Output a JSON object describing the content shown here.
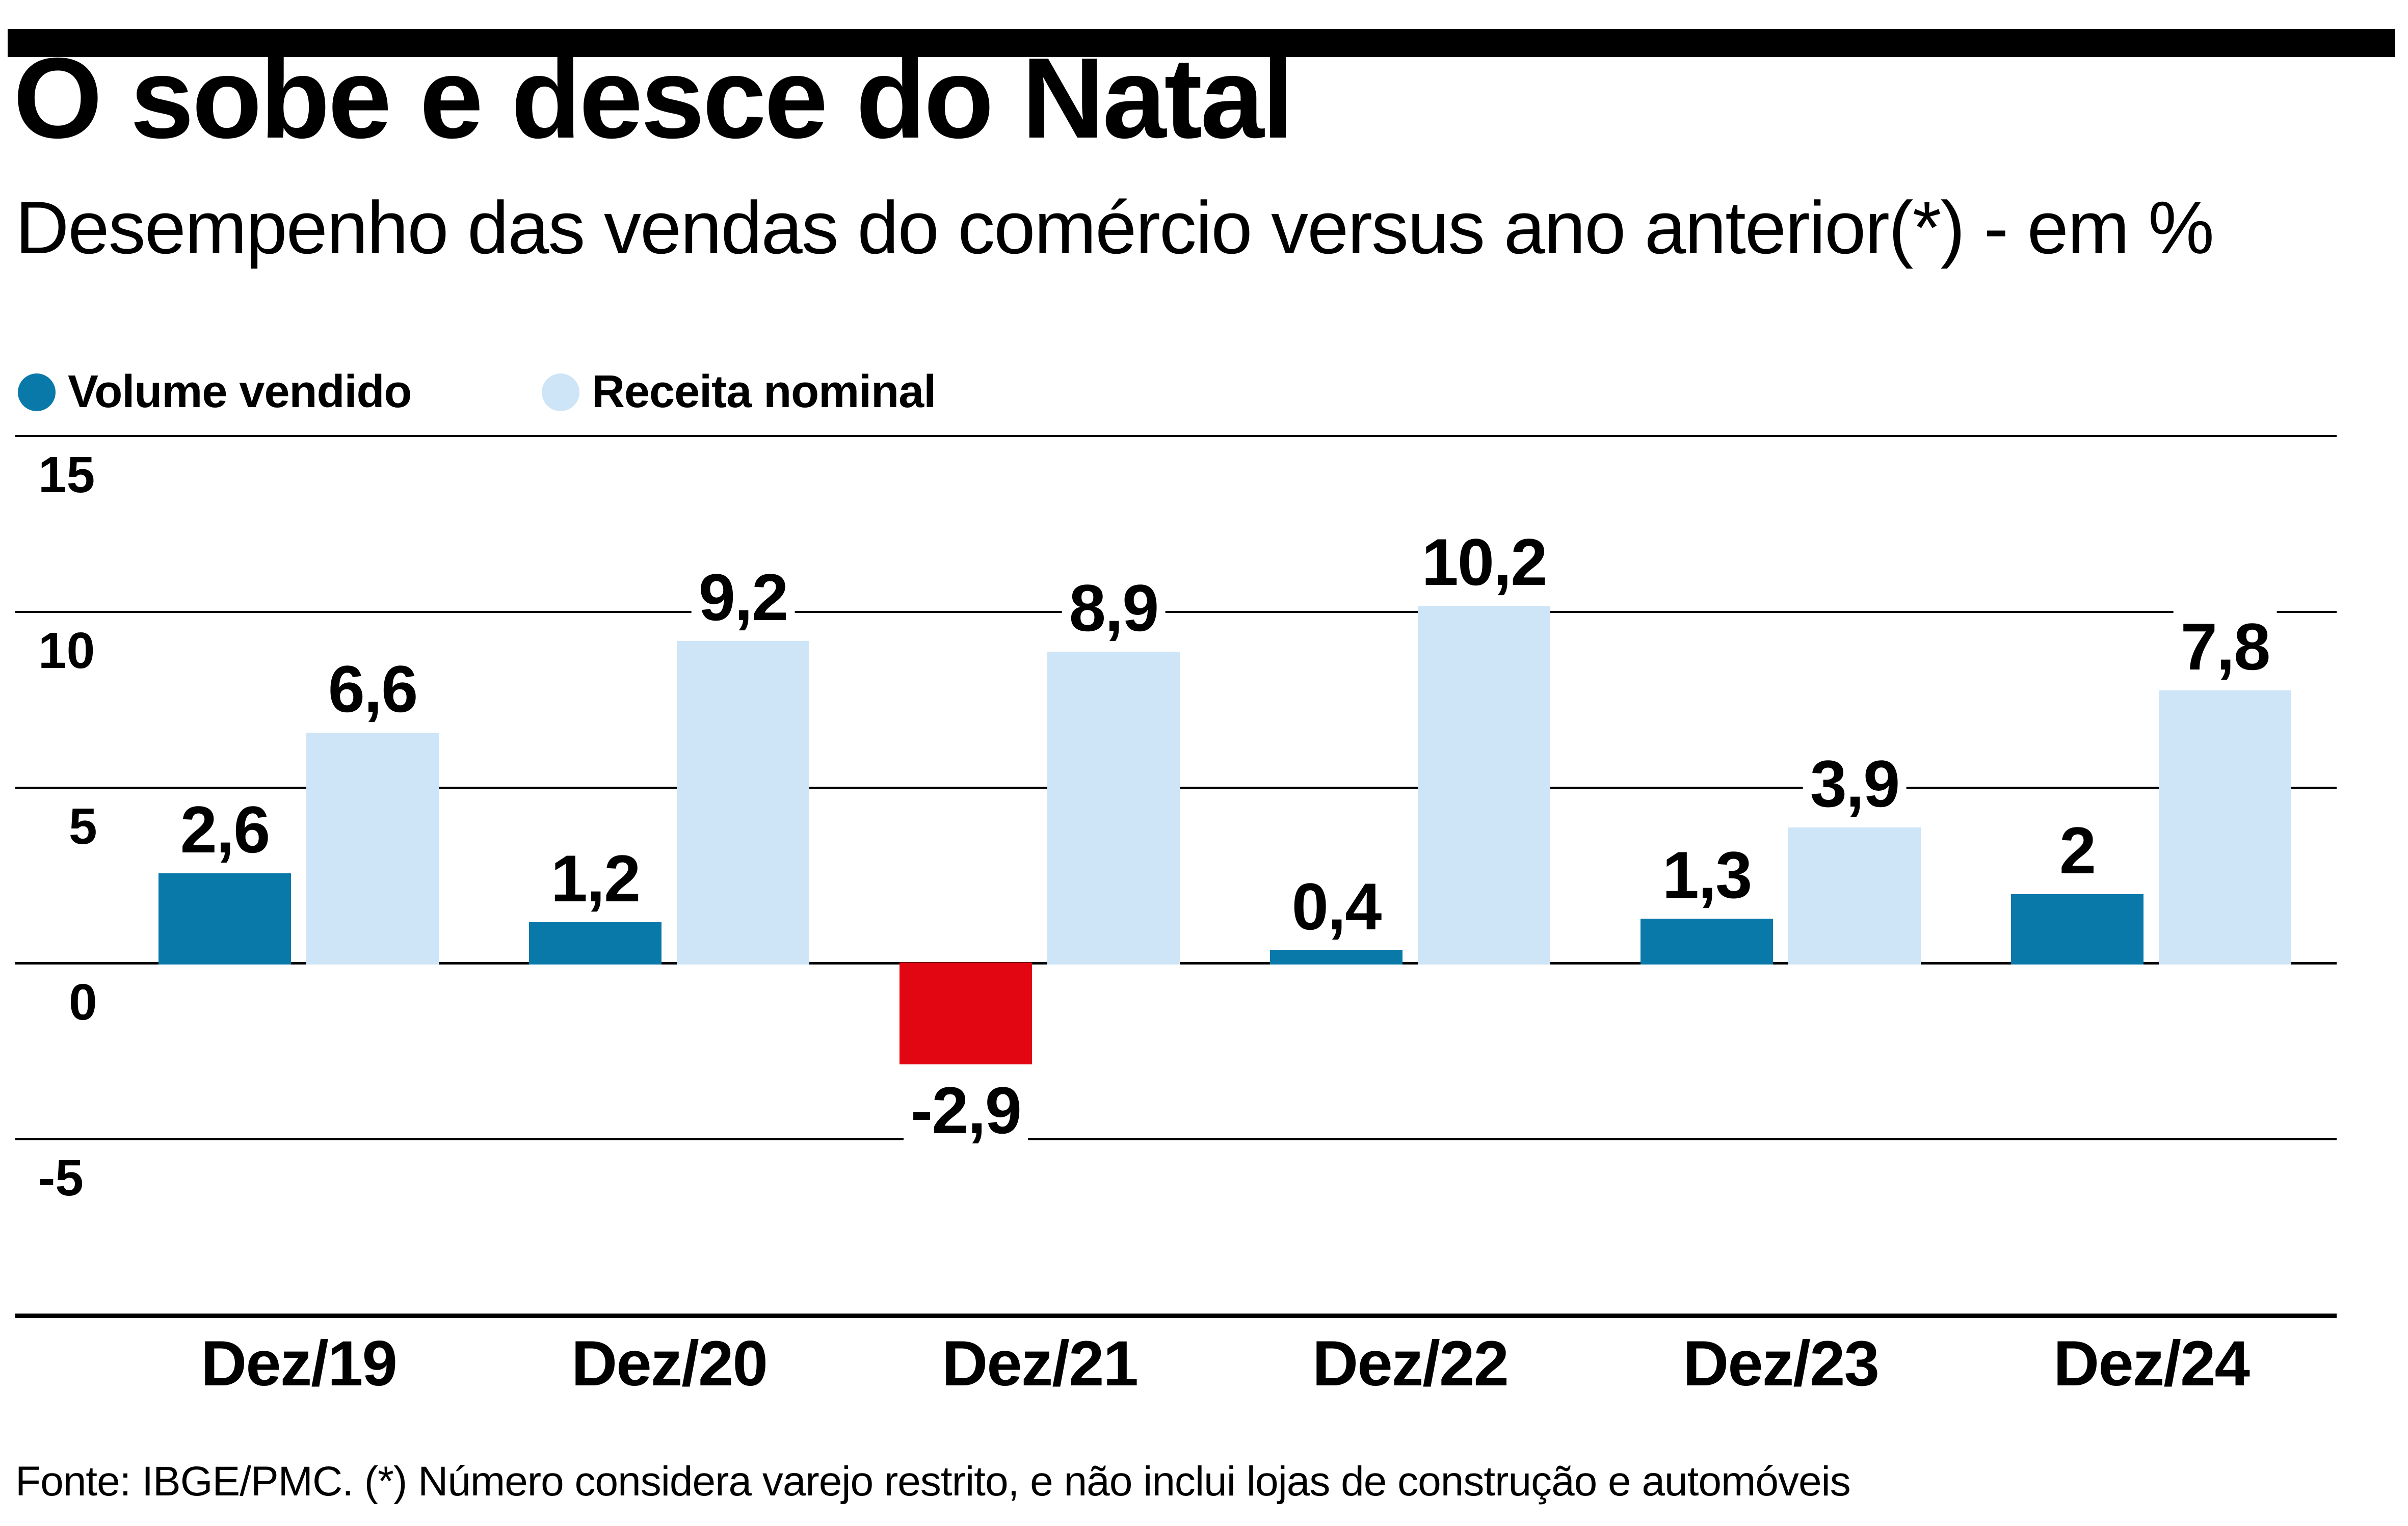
{
  "header": {
    "title": "O sobe e desce do Natal",
    "subtitle": "Desempenho das vendas do comércio versus ano anterior(*) - em %"
  },
  "legend": {
    "items": [
      {
        "label": "Volume vendido",
        "color": "#0979aa"
      },
      {
        "label": "Receita nominal",
        "color": "#cde5f7"
      }
    ]
  },
  "colors": {
    "volume": "#0979aa",
    "receita": "#cde5f7",
    "negative": "#e20613",
    "axis": "#000000",
    "background": "#ffffff"
  },
  "footer": {
    "source": "Fonte: IBGE/PMC. (*) Número considera varejo restrito, e não inclui lojas de construção e automóveis"
  },
  "chart_data": {
    "type": "bar",
    "title": "O sobe e desce do Natal",
    "subtitle": "Desempenho das vendas do comércio versus ano anterior(*) - em %",
    "categories": [
      "Dez/19",
      "Dez/20",
      "Dez/21",
      "Dez/22",
      "Dez/23",
      "Dez/24"
    ],
    "series": [
      {
        "name": "Volume vendido",
        "values": [
          2.6,
          1.2,
          -2.9,
          0.4,
          1.3,
          2
        ],
        "labels": [
          "2,6",
          "1,2",
          "-2,9",
          "0,4",
          "1,3",
          "2"
        ],
        "color": "#0979aa",
        "negative_color": "#e20613"
      },
      {
        "name": "Receita nominal",
        "values": [
          6.6,
          9.2,
          8.9,
          10.2,
          3.9,
          7.8
        ],
        "labels": [
          "6,6",
          "9,2",
          "8,9",
          "10,2",
          "3,9",
          "7,8"
        ],
        "color": "#cde5f7"
      }
    ],
    "yticks": [
      {
        "label": "15",
        "value": 15
      },
      {
        "label": "10",
        "value": 10
      },
      {
        "label": "5",
        "value": 5
      },
      {
        "label": "0",
        "value": 0
      },
      {
        "label": "-5",
        "value": -5
      }
    ],
    "ylim": [
      -10,
      15
    ],
    "grid": true,
    "legend_position": "top",
    "value_labels": true,
    "xlabel": "",
    "ylabel": "em %"
  }
}
